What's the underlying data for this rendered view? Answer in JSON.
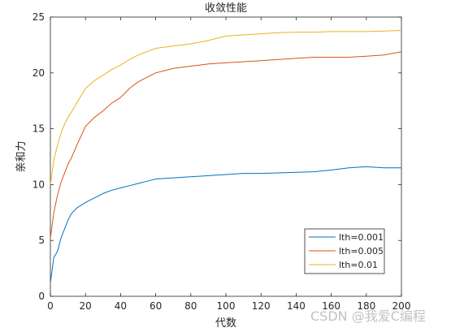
{
  "chart_data": {
    "type": "line",
    "title": "收敛性能",
    "xlabel": "代数",
    "ylabel": "亲和力",
    "xlim": [
      0,
      200
    ],
    "ylim": [
      0,
      25
    ],
    "xticks": [
      0,
      20,
      40,
      60,
      80,
      100,
      120,
      140,
      160,
      180,
      200
    ],
    "yticks": [
      0,
      5,
      10,
      15,
      20,
      25
    ],
    "grid": false,
    "legend_position": "bottom-right",
    "x": [
      0,
      2,
      4,
      6,
      8,
      10,
      12,
      15,
      20,
      25,
      30,
      35,
      40,
      45,
      50,
      55,
      60,
      70,
      80,
      90,
      100,
      110,
      120,
      130,
      140,
      150,
      160,
      170,
      180,
      190,
      200
    ],
    "series": [
      {
        "name": "lth=0.001",
        "color": "#0072BD",
        "values": [
          1.2,
          3.5,
          4.0,
          5.2,
          6.0,
          6.8,
          7.4,
          7.9,
          8.4,
          8.8,
          9.2,
          9.5,
          9.7,
          9.9,
          10.1,
          10.3,
          10.5,
          10.6,
          10.7,
          10.8,
          10.9,
          11.0,
          11.0,
          11.05,
          11.1,
          11.15,
          11.3,
          11.5,
          11.6,
          11.5,
          11.5
        ]
      },
      {
        "name": "lth=0.005",
        "color": "#D95319",
        "values": [
          5.2,
          7.5,
          9.0,
          10.2,
          11.0,
          11.8,
          12.4,
          13.5,
          15.2,
          16.0,
          16.6,
          17.3,
          17.8,
          18.6,
          19.2,
          19.6,
          20.0,
          20.4,
          20.6,
          20.8,
          20.9,
          21.0,
          21.1,
          21.2,
          21.3,
          21.4,
          21.4,
          21.4,
          21.5,
          21.6,
          21.9
        ]
      },
      {
        "name": "lth=0.01",
        "color": "#EDB120",
        "values": [
          10.0,
          12.2,
          13.5,
          14.6,
          15.4,
          16.0,
          16.5,
          17.3,
          18.6,
          19.3,
          19.8,
          20.3,
          20.7,
          21.2,
          21.6,
          21.9,
          22.2,
          22.4,
          22.6,
          22.9,
          23.3,
          23.4,
          23.5,
          23.6,
          23.65,
          23.65,
          23.7,
          23.7,
          23.7,
          23.75,
          23.8
        ]
      }
    ]
  },
  "watermark": "CSDN @我爱C编程"
}
